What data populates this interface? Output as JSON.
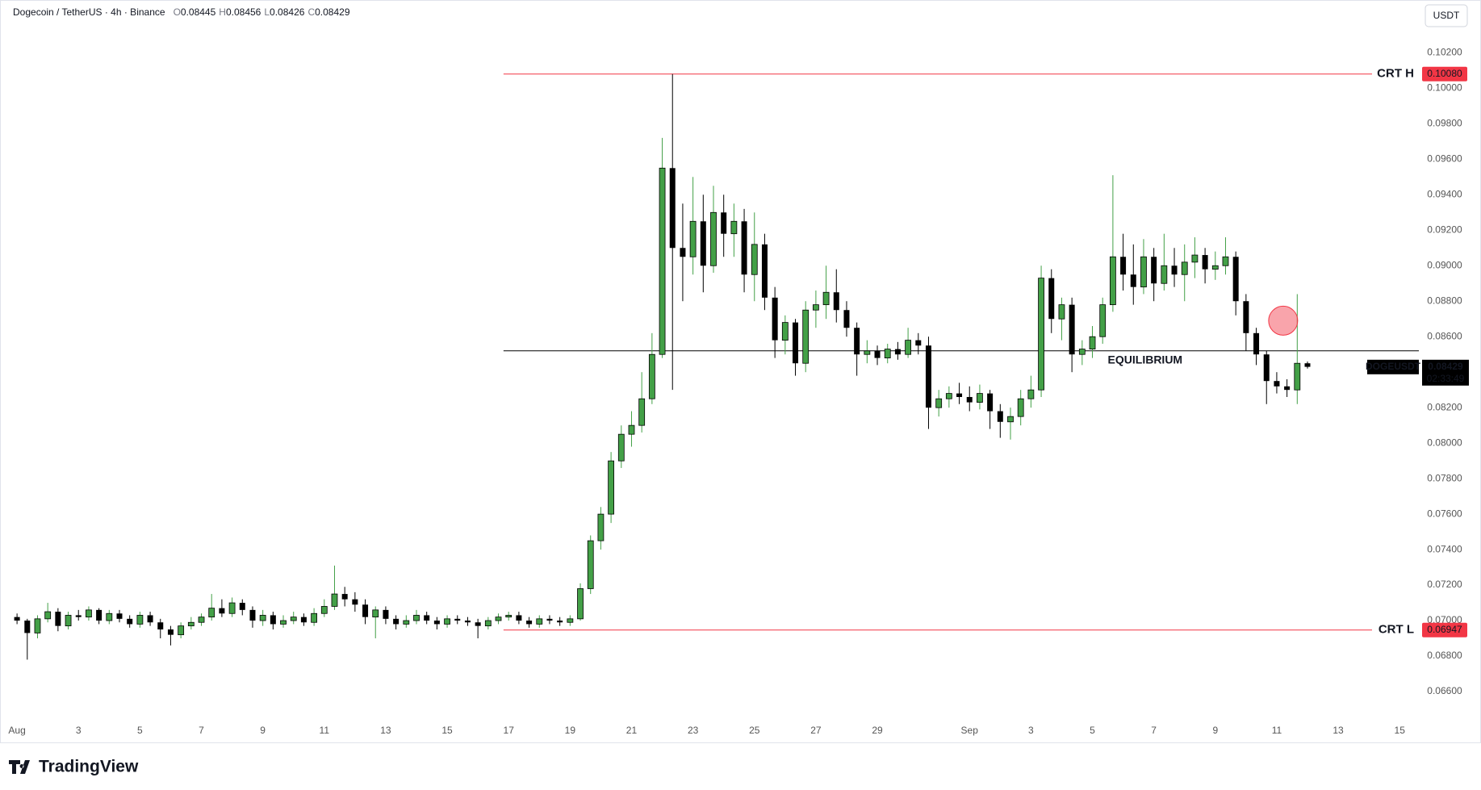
{
  "chart_data": {
    "type": "candlestick",
    "header": {
      "title": "Dogecoin / TetherUS · 4h · Binance",
      "ohlc": [
        {
          "name": "O",
          "value": 0.08445
        },
        {
          "name": "H",
          "value": 0.08456
        },
        {
          "name": "L",
          "value": 0.08426
        },
        {
          "name": "C",
          "value": 0.08429
        }
      ]
    },
    "currency_button": "USDT",
    "up_color": "#43a047",
    "down_color": "#000000",
    "grid": false,
    "x": [
      0,
      8,
      16,
      24,
      32,
      40,
      48,
      56,
      64,
      72,
      80,
      88,
      96,
      104,
      112,
      120,
      128,
      136,
      144,
      152,
      160,
      168,
      176,
      184,
      192,
      200,
      208,
      216,
      224,
      232,
      240,
      248,
      256,
      264,
      272,
      280,
      288,
      296,
      304,
      312,
      320,
      328,
      336,
      344,
      352,
      360,
      368,
      376,
      384,
      392,
      400,
      408,
      416,
      424,
      432,
      440,
      448,
      456,
      464,
      472,
      480,
      488,
      496,
      504,
      512,
      520,
      528,
      536,
      544,
      552,
      560,
      568,
      576,
      584,
      592,
      600,
      608,
      616,
      624,
      632,
      640,
      648,
      656,
      664,
      672,
      680,
      688,
      696,
      704,
      712,
      720,
      728,
      736,
      744,
      752,
      760,
      768,
      776,
      784,
      792,
      800,
      808,
      816,
      824,
      832,
      840,
      848,
      856,
      864,
      872,
      880,
      888,
      896,
      904,
      912,
      920,
      928,
      936,
      944,
      952,
      960,
      968,
      976,
      984,
      992,
      1000,
      1008
    ],
    "open": [
      0.0702,
      0.07,
      0.0693,
      0.0701,
      0.0705,
      0.0697,
      0.0703,
      0.0702,
      0.0706,
      0.07,
      0.0704,
      0.0701,
      0.0698,
      0.0703,
      0.0699,
      0.0695,
      0.0692,
      0.0697,
      0.0699,
      0.0702,
      0.0707,
      0.0704,
      0.071,
      0.0706,
      0.07,
      0.0703,
      0.0698,
      0.07,
      0.0702,
      0.0699,
      0.0704,
      0.0708,
      0.0715,
      0.0712,
      0.0709,
      0.0702,
      0.0706,
      0.0701,
      0.0698,
      0.07,
      0.0703,
      0.07,
      0.0698,
      0.0701,
      0.07,
      0.0699,
      0.0697,
      0.07,
      0.0702,
      0.0703,
      0.07,
      0.0698,
      0.0701,
      0.07,
      0.0699,
      0.0701,
      0.0718,
      0.0745,
      0.076,
      0.079,
      0.0805,
      0.081,
      0.0825,
      0.085,
      0.0955,
      0.091,
      0.0905,
      0.0925,
      0.09,
      0.093,
      0.0918,
      0.0925,
      0.0895,
      0.0912,
      0.0882,
      0.0858,
      0.0868,
      0.0845,
      0.0875,
      0.0878,
      0.0885,
      0.0875,
      0.0865,
      0.085,
      0.0852,
      0.0848,
      0.0853,
      0.085,
      0.0858,
      0.0855,
      0.082,
      0.0825,
      0.0828,
      0.0826,
      0.0823,
      0.0828,
      0.0818,
      0.0812,
      0.0815,
      0.0825,
      0.083,
      0.0893,
      0.087,
      0.0878,
      0.085,
      0.0853,
      0.086,
      0.0878,
      0.0905,
      0.0895,
      0.0888,
      0.0905,
      0.089,
      0.09,
      0.0895,
      0.0902,
      0.0906,
      0.0898,
      0.09,
      0.0905,
      0.088,
      0.0862,
      0.085,
      0.0835,
      0.0832,
      0.083,
      0.0845
    ],
    "high": [
      0.0704,
      0.0701,
      0.0703,
      0.071,
      0.0707,
      0.0705,
      0.0706,
      0.0708,
      0.0707,
      0.0706,
      0.0706,
      0.0703,
      0.0705,
      0.0705,
      0.0701,
      0.0697,
      0.0699,
      0.0702,
      0.0704,
      0.0715,
      0.0712,
      0.0713,
      0.0712,
      0.0708,
      0.0706,
      0.0705,
      0.0703,
      0.0705,
      0.0704,
      0.0707,
      0.0712,
      0.0731,
      0.0719,
      0.0716,
      0.0712,
      0.0708,
      0.0708,
      0.0703,
      0.0703,
      0.0706,
      0.0705,
      0.0702,
      0.0703,
      0.0703,
      0.0702,
      0.0701,
      0.0702,
      0.0704,
      0.0705,
      0.0705,
      0.0702,
      0.0703,
      0.0703,
      0.0702,
      0.0703,
      0.0721,
      0.0748,
      0.0764,
      0.0795,
      0.081,
      0.0818,
      0.084,
      0.0862,
      0.0972,
      0.1008,
      0.0935,
      0.095,
      0.094,
      0.0945,
      0.094,
      0.0935,
      0.0932,
      0.093,
      0.0918,
      0.0888,
      0.0872,
      0.087,
      0.088,
      0.0886,
      0.09,
      0.0898,
      0.088,
      0.0868,
      0.0858,
      0.0855,
      0.0856,
      0.0857,
      0.0865,
      0.0862,
      0.086,
      0.083,
      0.0832,
      0.0834,
      0.0832,
      0.0833,
      0.083,
      0.0822,
      0.082,
      0.083,
      0.0838,
      0.09,
      0.0898,
      0.0882,
      0.0882,
      0.0858,
      0.0866,
      0.0882,
      0.0951,
      0.0918,
      0.0912,
      0.0915,
      0.091,
      0.0918,
      0.091,
      0.0912,
      0.0916,
      0.091,
      0.0908,
      0.0916,
      0.0908,
      0.0884,
      0.0865,
      0.0852,
      0.084,
      0.0836,
      0.0884,
      0.0846
    ],
    "low": [
      0.0698,
      0.0678,
      0.069,
      0.0699,
      0.0694,
      0.0695,
      0.07,
      0.07,
      0.0698,
      0.0698,
      0.0699,
      0.0696,
      0.0696,
      0.0697,
      0.069,
      0.0686,
      0.069,
      0.0695,
      0.0697,
      0.07,
      0.0702,
      0.0702,
      0.0703,
      0.0696,
      0.0697,
      0.0695,
      0.0696,
      0.0698,
      0.0697,
      0.0697,
      0.0702,
      0.0706,
      0.0708,
      0.0705,
      0.0698,
      0.069,
      0.0698,
      0.0695,
      0.0696,
      0.0698,
      0.0698,
      0.0695,
      0.0696,
      0.0698,
      0.0697,
      0.069,
      0.0695,
      0.0698,
      0.07,
      0.0698,
      0.0696,
      0.0696,
      0.0698,
      0.0697,
      0.0697,
      0.07,
      0.0715,
      0.074,
      0.0755,
      0.0786,
      0.0798,
      0.0806,
      0.0822,
      0.0848,
      0.083,
      0.088,
      0.0895,
      0.0885,
      0.0896,
      0.0905,
      0.0905,
      0.0885,
      0.088,
      0.0875,
      0.0848,
      0.085,
      0.0838,
      0.084,
      0.0865,
      0.087,
      0.0868,
      0.086,
      0.0838,
      0.0845,
      0.0844,
      0.0845,
      0.0847,
      0.0848,
      0.085,
      0.0808,
      0.0815,
      0.082,
      0.0822,
      0.0818,
      0.0819,
      0.0808,
      0.0803,
      0.0802,
      0.081,
      0.082,
      0.0826,
      0.0862,
      0.0858,
      0.084,
      0.0844,
      0.0848,
      0.0856,
      0.0874,
      0.0886,
      0.0878,
      0.0884,
      0.088,
      0.0886,
      0.0888,
      0.088,
      0.0893,
      0.089,
      0.0892,
      0.0895,
      0.0872,
      0.0852,
      0.0844,
      0.0822,
      0.0828,
      0.0826,
      0.0822,
      0.0842
    ],
    "close": [
      0.07,
      0.0693,
      0.0701,
      0.0705,
      0.0697,
      0.0703,
      0.0702,
      0.0706,
      0.07,
      0.0704,
      0.0701,
      0.0698,
      0.0703,
      0.0699,
      0.0695,
      0.0692,
      0.0697,
      0.0699,
      0.0702,
      0.0707,
      0.0704,
      0.071,
      0.0706,
      0.07,
      0.0703,
      0.0698,
      0.07,
      0.0702,
      0.0699,
      0.0704,
      0.0708,
      0.0715,
      0.0712,
      0.0709,
      0.0702,
      0.0706,
      0.0701,
      0.0698,
      0.07,
      0.0703,
      0.07,
      0.0698,
      0.0701,
      0.07,
      0.0699,
      0.0697,
      0.07,
      0.0702,
      0.0703,
      0.07,
      0.0698,
      0.0701,
      0.07,
      0.0699,
      0.0701,
      0.0718,
      0.0745,
      0.076,
      0.079,
      0.0805,
      0.081,
      0.0825,
      0.085,
      0.0955,
      0.091,
      0.0905,
      0.0925,
      0.09,
      0.093,
      0.0918,
      0.0925,
      0.0895,
      0.0912,
      0.0882,
      0.0858,
      0.0868,
      0.0845,
      0.0875,
      0.0878,
      0.0885,
      0.0875,
      0.0865,
      0.085,
      0.0852,
      0.0848,
      0.0853,
      0.085,
      0.0858,
      0.0855,
      0.082,
      0.0825,
      0.0828,
      0.0826,
      0.0823,
      0.0828,
      0.0818,
      0.0812,
      0.0815,
      0.0825,
      0.083,
      0.0893,
      0.087,
      0.0878,
      0.085,
      0.0853,
      0.086,
      0.0878,
      0.0905,
      0.0895,
      0.0888,
      0.0905,
      0.089,
      0.09,
      0.0895,
      0.0902,
      0.0906,
      0.0898,
      0.09,
      0.0905,
      0.088,
      0.0862,
      0.085,
      0.0835,
      0.0832,
      0.083,
      0.0845,
      0.0843
    ],
    "xlim": [
      -7,
      1095
    ],
    "xticks": [
      {
        "value": 0,
        "label": "Aug"
      },
      {
        "value": 48,
        "label": "3"
      },
      {
        "value": 96,
        "label": "5"
      },
      {
        "value": 144,
        "label": "7"
      },
      {
        "value": 192,
        "label": "9"
      },
      {
        "value": 240,
        "label": "11"
      },
      {
        "value": 288,
        "label": "13"
      },
      {
        "value": 336,
        "label": "15"
      },
      {
        "value": 384,
        "label": "17"
      },
      {
        "value": 432,
        "label": "19"
      },
      {
        "value": 480,
        "label": "21"
      },
      {
        "value": 528,
        "label": "23"
      },
      {
        "value": 576,
        "label": "25"
      },
      {
        "value": 624,
        "label": "27"
      },
      {
        "value": 672,
        "label": "29"
      },
      {
        "value": 744,
        "label": "Sep"
      },
      {
        "value": 792,
        "label": "3"
      },
      {
        "value": 840,
        "label": "5"
      },
      {
        "value": 888,
        "label": "7"
      },
      {
        "value": 936,
        "label": "9"
      },
      {
        "value": 984,
        "label": "11"
      },
      {
        "value": 1032,
        "label": "13"
      },
      {
        "value": 1080,
        "label": "15"
      }
    ],
    "ylim": [
      0.0645,
      0.1047
    ],
    "yticks": [
      {
        "value": 0.066,
        "label": "0.06600"
      },
      {
        "value": 0.068,
        "label": "0.06800"
      },
      {
        "value": 0.07,
        "label": "0.07000"
      },
      {
        "value": 0.072,
        "label": "0.07200"
      },
      {
        "value": 0.074,
        "label": "0.07400"
      },
      {
        "value": 0.076,
        "label": "0.07600"
      },
      {
        "value": 0.078,
        "label": "0.07800"
      },
      {
        "value": 0.08,
        "label": "0.08000"
      },
      {
        "value": 0.082,
        "label": "0.08200"
      },
      {
        "value": 0.084,
        "label": "0.08400"
      },
      {
        "value": 0.086,
        "label": "0.08600"
      },
      {
        "value": 0.088,
        "label": "0.08800"
      },
      {
        "value": 0.09,
        "label": "0.09000"
      },
      {
        "value": 0.092,
        "label": "0.09200"
      },
      {
        "value": 0.094,
        "label": "0.09400"
      },
      {
        "value": 0.096,
        "label": "0.09600"
      },
      {
        "value": 0.098,
        "label": "0.09800"
      },
      {
        "value": 0.1,
        "label": "0.10000"
      },
      {
        "value": 0.102,
        "label": "0.10200"
      }
    ],
    "level_start": 380,
    "levels": [
      {
        "name": "CRT H",
        "value": 0.1008,
        "value_label": "0.10080",
        "color": "#f23645"
      },
      {
        "name": "CRT L",
        "value": 0.06947,
        "color": "#f23645"
      }
    ],
    "equilibrium": {
      "name": "EQUILIBRIUM",
      "value": 0.0852,
      "color": "#000000",
      "label_color": "#f23645",
      "label_x": 852
    },
    "last_price": {
      "symbol": "DOGEUSDT",
      "value": 0.08429,
      "countdown": "02:33:49"
    },
    "marker": {
      "x": 989,
      "y": 0.0869,
      "color": "#f23645"
    }
  },
  "footer": {
    "brand": "TradingView"
  }
}
